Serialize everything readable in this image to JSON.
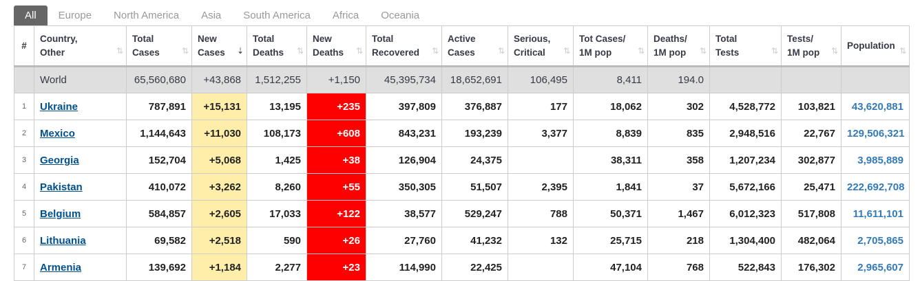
{
  "tabs": [
    "All",
    "Europe",
    "North America",
    "Asia",
    "South America",
    "Africa",
    "Oceania"
  ],
  "active_tab": 0,
  "columns": [
    {
      "l1": "#",
      "l2": ""
    },
    {
      "l1": "Country,",
      "l2": "Other"
    },
    {
      "l1": "Total",
      "l2": "Cases"
    },
    {
      "l1": "New",
      "l2": "Cases"
    },
    {
      "l1": "Total",
      "l2": "Deaths"
    },
    {
      "l1": "New",
      "l2": "Deaths"
    },
    {
      "l1": "Total",
      "l2": "Recovered"
    },
    {
      "l1": "Active",
      "l2": "Cases"
    },
    {
      "l1": "Serious,",
      "l2": "Critical"
    },
    {
      "l1": "Tot Cases/",
      "l2": "1M pop"
    },
    {
      "l1": "Deaths/",
      "l2": "1M pop"
    },
    {
      "l1": "Total",
      "l2": "Tests"
    },
    {
      "l1": "Tests/",
      "l2": "1M pop"
    },
    {
      "l1": "Population",
      "l2": ""
    }
  ],
  "sort_glyph": "⇅",
  "active_sort_glyph": "⇣",
  "world": {
    "name": "World",
    "total_cases": "65,560,680",
    "new_cases": "+43,868",
    "total_deaths": "1,512,255",
    "new_deaths": "+1,150",
    "total_recovered": "45,395,734",
    "active_cases": "18,652,691",
    "serious": "106,495",
    "cases_per_1m": "8,411",
    "deaths_per_1m": "194.0",
    "total_tests": "",
    "tests_per_1m": "",
    "population": ""
  },
  "rows": [
    {
      "idx": "1",
      "country": "Ukraine",
      "total_cases": "787,891",
      "new_cases": "+15,131",
      "total_deaths": "13,195",
      "new_deaths": "+235",
      "total_recovered": "397,809",
      "active_cases": "376,887",
      "serious": "177",
      "cases_per_1m": "18,062",
      "deaths_per_1m": "302",
      "total_tests": "4,528,772",
      "tests_per_1m": "103,821",
      "population": "43,620,881"
    },
    {
      "idx": "2",
      "country": "Mexico",
      "total_cases": "1,144,643",
      "new_cases": "+11,030",
      "total_deaths": "108,173",
      "new_deaths": "+608",
      "total_recovered": "843,231",
      "active_cases": "193,239",
      "serious": "3,377",
      "cases_per_1m": "8,839",
      "deaths_per_1m": "835",
      "total_tests": "2,948,516",
      "tests_per_1m": "22,767",
      "population": "129,506,321"
    },
    {
      "idx": "3",
      "country": "Georgia",
      "total_cases": "152,704",
      "new_cases": "+5,068",
      "total_deaths": "1,425",
      "new_deaths": "+38",
      "total_recovered": "126,904",
      "active_cases": "24,375",
      "serious": "",
      "cases_per_1m": "38,311",
      "deaths_per_1m": "358",
      "total_tests": "1,207,234",
      "tests_per_1m": "302,877",
      "population": "3,985,889"
    },
    {
      "idx": "4",
      "country": "Pakistan",
      "total_cases": "410,072",
      "new_cases": "+3,262",
      "total_deaths": "8,260",
      "new_deaths": "+55",
      "total_recovered": "350,305",
      "active_cases": "51,507",
      "serious": "2,395",
      "cases_per_1m": "1,841",
      "deaths_per_1m": "37",
      "total_tests": "5,672,166",
      "tests_per_1m": "25,471",
      "population": "222,692,708"
    },
    {
      "idx": "5",
      "country": "Belgium",
      "total_cases": "584,857",
      "new_cases": "+2,605",
      "total_deaths": "17,033",
      "new_deaths": "+122",
      "total_recovered": "38,577",
      "active_cases": "529,247",
      "serious": "788",
      "cases_per_1m": "50,371",
      "deaths_per_1m": "1,467",
      "total_tests": "6,012,323",
      "tests_per_1m": "517,808",
      "population": "11,611,101"
    },
    {
      "idx": "6",
      "country": "Lithuania",
      "total_cases": "69,582",
      "new_cases": "+2,518",
      "total_deaths": "590",
      "new_deaths": "+26",
      "total_recovered": "27,760",
      "active_cases": "41,232",
      "serious": "132",
      "cases_per_1m": "25,715",
      "deaths_per_1m": "218",
      "total_tests": "1,304,400",
      "tests_per_1m": "482,064",
      "population": "2,705,865"
    },
    {
      "idx": "7",
      "country": "Armenia",
      "total_cases": "139,692",
      "new_cases": "+1,184",
      "total_deaths": "2,277",
      "new_deaths": "+23",
      "total_recovered": "114,990",
      "active_cases": "22,425",
      "serious": "",
      "cases_per_1m": "47,104",
      "deaths_per_1m": "768",
      "total_tests": "522,843",
      "tests_per_1m": "176,302",
      "population": "2,965,607"
    }
  ]
}
